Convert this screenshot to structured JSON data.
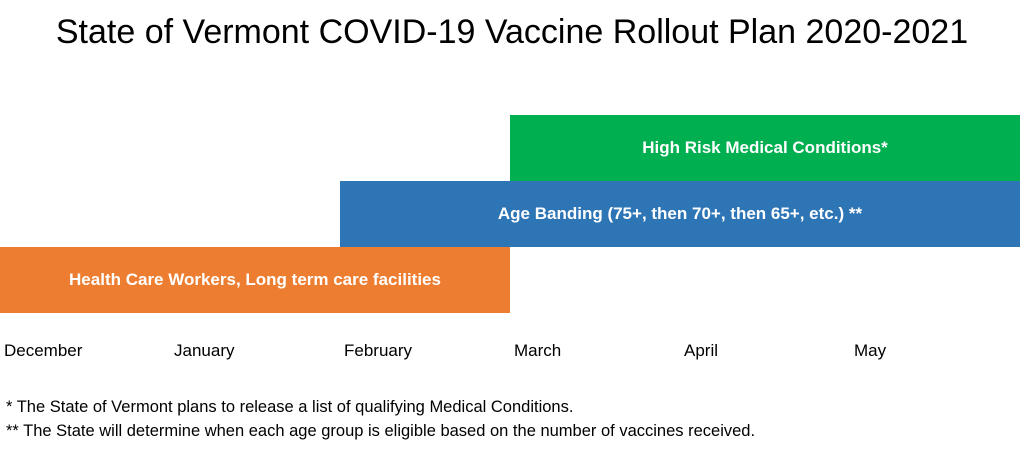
{
  "chart_data": {
    "type": "gantt",
    "title": "State of Vermont COVID-19 Vaccine Rollout Plan 2020-2021",
    "categories": [
      "December",
      "January",
      "February",
      "March",
      "April",
      "May"
    ],
    "tasks": [
      {
        "label": "High Risk Medical Conditions*",
        "start": 3,
        "end": 6,
        "color": "#00B050"
      },
      {
        "label": "Age Banding (75+,  then 70+,  then 65+, etc.) **",
        "start": 2,
        "end": 6,
        "color": "#2E75B6"
      },
      {
        "label": "Health Care Workers, Long term care facilities",
        "start": 0,
        "end": 3,
        "color": "#ED7D31"
      }
    ],
    "xlim": [
      0,
      6
    ],
    "grid": false,
    "legend": "none"
  },
  "notes": [
    "* The State of Vermont plans to release a list of qualifying Medical Conditions.",
    "** The State will determine when each age group is eligible based on the number of vaccines received."
  ]
}
